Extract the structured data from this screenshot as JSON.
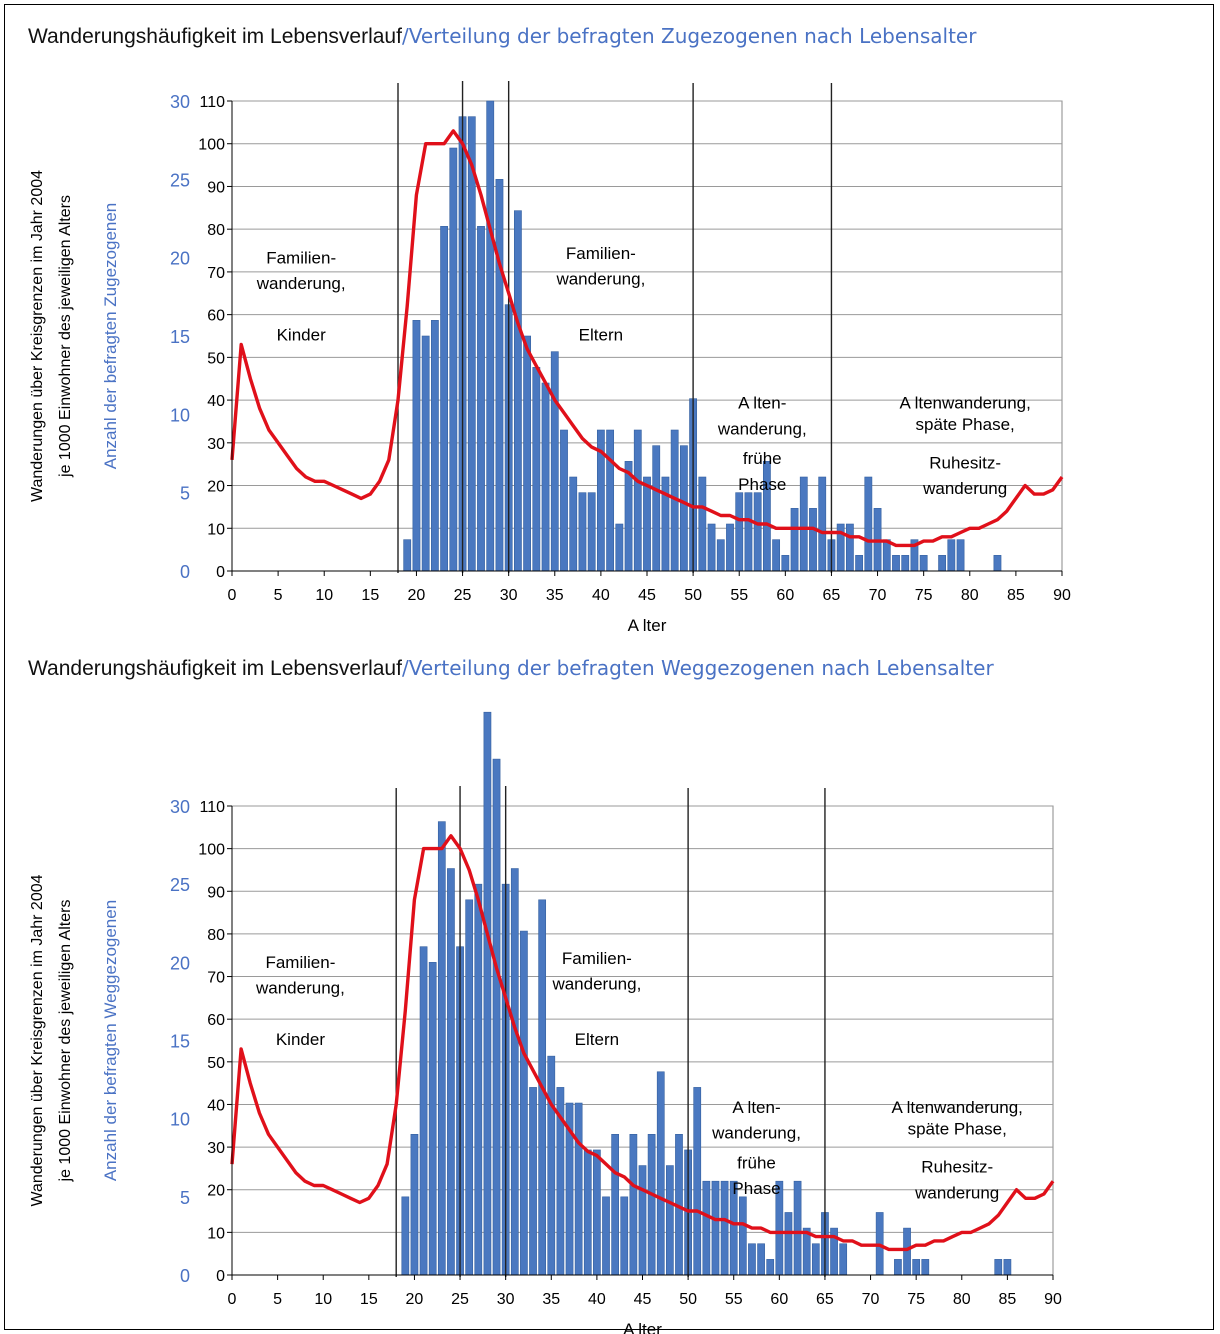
{
  "chart_data": [
    {
      "type": "bar",
      "title": "Wanderungshäufigkeit im Lebensverlauf",
      "subtitle": "/Verteilung der befragten Zugezogenen nach Lebensalter",
      "xlabel": "A lter",
      "ylabel_left": "Wanderungen über Kreisgrenzen im Jahr 2004",
      "ylabel_left2": "je 1000 Einwohner des jeweiligen Alters",
      "ylabel_blue": "Anzahl der befragten Zugezogenen",
      "xlim": [
        0,
        90
      ],
      "ylim_left": [
        0,
        110
      ],
      "ylim_blue": [
        0,
        30
      ],
      "grid": true,
      "x_ticks": [
        0,
        5,
        10,
        15,
        20,
        25,
        30,
        35,
        40,
        45,
        50,
        55,
        60,
        65,
        70,
        75,
        80,
        85,
        90
      ],
      "y_ticks_left": [
        0,
        10,
        20,
        30,
        40,
        50,
        60,
        70,
        80,
        90,
        100,
        110
      ],
      "y_ticks_blue": [
        0,
        5,
        10,
        15,
        20,
        25,
        30
      ],
      "vertical_lines": [
        18,
        25,
        30,
        50,
        65
      ],
      "annotations": [
        {
          "text": "Familien-",
          "x": 12,
          "y": 72
        },
        {
          "text": "wanderung,",
          "x": 12,
          "y": 66
        },
        {
          "text": "Kinder",
          "x": 12,
          "y": 54
        },
        {
          "text": "Familien-",
          "x": 54,
          "y": 73
        },
        {
          "text": "wanderung,",
          "x": 54,
          "y": 67
        },
        {
          "text": "Eltern",
          "x": 54,
          "y": 54
        },
        {
          "text": "A lten-",
          "x": 80,
          "y": 38
        },
        {
          "text": "wanderung,",
          "x": 80,
          "y": 32
        },
        {
          "text": "frühe",
          "x": 80,
          "y": 25
        },
        {
          "text": "Phase",
          "x": 80,
          "y": 19
        },
        {
          "text": "A ltenwanderung,",
          "x": 118,
          "y": 38
        },
        {
          "text": "späte Phase,",
          "x": 118,
          "y": 33
        },
        {
          "text": "Ruhesitz-",
          "x": 118,
          "y": 24
        },
        {
          "text": "wanderung",
          "x": 118,
          "y": 18
        }
      ],
      "bars": {
        "name": "Anzahl der befragten Zugezogenen",
        "x": [
          19,
          20,
          21,
          22,
          23,
          24,
          25,
          26,
          27,
          28,
          29,
          30,
          31,
          32,
          33,
          34,
          35,
          36,
          37,
          38,
          39,
          40,
          41,
          42,
          43,
          44,
          45,
          46,
          47,
          48,
          49,
          50,
          51,
          52,
          53,
          54,
          55,
          56,
          57,
          58,
          59,
          60,
          61,
          62,
          63,
          64,
          65,
          66,
          67,
          68,
          69,
          70,
          71,
          72,
          73,
          74,
          75,
          76,
          77,
          78,
          79,
          80,
          81,
          82,
          83
        ],
        "values": [
          2,
          16,
          15,
          16,
          22,
          27,
          29,
          29,
          22,
          30,
          25,
          17,
          23,
          15,
          13,
          12,
          14,
          9,
          6,
          5,
          5,
          9,
          9,
          3,
          7,
          9,
          6,
          8,
          6,
          9,
          8,
          11,
          6,
          3,
          2,
          3,
          5,
          5,
          5,
          7,
          2,
          1,
          4,
          6,
          4,
          6,
          2,
          3,
          3,
          1,
          6,
          4,
          2,
          1,
          1,
          2,
          1,
          0,
          1,
          2,
          2,
          0,
          0,
          0,
          1
        ]
      },
      "line": {
        "name": "Wanderungen je 1000 Einwohner",
        "x": [
          0,
          1,
          2,
          3,
          4,
          5,
          6,
          7,
          8,
          9,
          10,
          11,
          12,
          13,
          14,
          15,
          16,
          17,
          18,
          19,
          20,
          21,
          22,
          23,
          24,
          25,
          26,
          27,
          28,
          29,
          30,
          31,
          32,
          33,
          34,
          35,
          36,
          37,
          38,
          39,
          40,
          41,
          42,
          43,
          44,
          45,
          46,
          47,
          48,
          49,
          50,
          51,
          52,
          53,
          54,
          55,
          56,
          57,
          58,
          59,
          60,
          61,
          62,
          63,
          64,
          65,
          66,
          67,
          68,
          69,
          70,
          71,
          72,
          73,
          74,
          75,
          76,
          77,
          78,
          79,
          80,
          81,
          82,
          83,
          84,
          85,
          86,
          87,
          88,
          89,
          90
        ],
        "values": [
          26,
          53,
          45,
          38,
          33,
          30,
          27,
          24,
          22,
          21,
          21,
          20,
          19,
          18,
          17,
          18,
          21,
          26,
          40,
          62,
          88,
          100,
          100,
          100,
          103,
          100,
          95,
          88,
          80,
          72,
          65,
          58,
          52,
          48,
          44,
          40,
          37,
          34,
          31,
          29,
          28,
          26,
          24,
          23,
          21,
          20,
          19,
          18,
          17,
          16,
          15,
          15,
          14,
          13,
          13,
          12,
          12,
          11,
          11,
          10,
          10,
          10,
          10,
          10,
          9,
          9,
          9,
          8,
          8,
          7,
          7,
          7,
          6,
          6,
          6,
          7,
          7,
          8,
          8,
          9,
          10,
          10,
          11,
          12,
          14,
          17,
          20,
          18,
          18,
          19,
          22
        ]
      }
    },
    {
      "type": "bar",
      "title": "Wanderungshäufigkeit im Lebensverlauf",
      "subtitle": "/Verteilung der befragten Weggezogenen nach Lebensalter",
      "xlabel": "A lter",
      "ylabel_left": "Wanderungen über Kreisgrenzen im Jahr 2004",
      "ylabel_left2": "je 1000 Einwohner des jeweiligen Alters",
      "ylabel_blue": "Anzahl der befragten Weggezogenen",
      "xlim": [
        0,
        90
      ],
      "ylim_left": [
        0,
        110
      ],
      "ylim_blue": [
        0,
        30
      ],
      "grid": true,
      "x_ticks": [
        0,
        5,
        10,
        15,
        20,
        25,
        30,
        35,
        40,
        45,
        50,
        55,
        60,
        65,
        70,
        75,
        80,
        85,
        90
      ],
      "y_ticks_left": [
        0,
        10,
        20,
        30,
        40,
        50,
        60,
        70,
        80,
        90,
        100,
        110
      ],
      "y_ticks_blue": [
        0,
        5,
        10,
        15,
        20,
        25,
        30
      ],
      "vertical_lines": [
        18,
        25,
        30,
        50,
        65
      ],
      "annotations": [
        {
          "text": "Familien-",
          "x": 12,
          "y": 72
        },
        {
          "text": "wanderung,",
          "x": 12,
          "y": 66
        },
        {
          "text": "Kinder",
          "x": 12,
          "y": 54
        },
        {
          "text": "Familien-",
          "x": 54,
          "y": 73
        },
        {
          "text": "wanderung,",
          "x": 54,
          "y": 67
        },
        {
          "text": "Eltern",
          "x": 54,
          "y": 54
        },
        {
          "text": "A lten-",
          "x": 80,
          "y": 38
        },
        {
          "text": "wanderung,",
          "x": 80,
          "y": 32
        },
        {
          "text": "frühe",
          "x": 80,
          "y": 25
        },
        {
          "text": "Phase",
          "x": 80,
          "y": 19
        },
        {
          "text": "A ltenwanderung,",
          "x": 118,
          "y": 38
        },
        {
          "text": "späte Phase,",
          "x": 118,
          "y": 33
        },
        {
          "text": "Ruhesitz-",
          "x": 118,
          "y": 24
        },
        {
          "text": "wanderung",
          "x": 118,
          "y": 18
        }
      ],
      "bars": {
        "name": "Anzahl der befragten Weggezogenen",
        "x": [
          19,
          20,
          21,
          22,
          23,
          24,
          25,
          26,
          27,
          28,
          29,
          30,
          31,
          32,
          33,
          34,
          35,
          36,
          37,
          38,
          39,
          40,
          41,
          42,
          43,
          44,
          45,
          46,
          47,
          48,
          49,
          50,
          51,
          52,
          53,
          54,
          55,
          56,
          57,
          58,
          59,
          60,
          61,
          62,
          63,
          64,
          65,
          66,
          67,
          68,
          69,
          70,
          71,
          72,
          73,
          74,
          75,
          76,
          77,
          78,
          79,
          80,
          81,
          82,
          83,
          84,
          85
        ],
        "values": [
          5,
          9,
          21,
          20,
          29,
          26,
          21,
          24,
          25,
          36,
          33,
          25,
          26,
          22,
          12,
          24,
          14,
          12,
          11,
          11,
          8,
          8,
          5,
          9,
          5,
          9,
          7,
          9,
          13,
          7,
          9,
          8,
          12,
          6,
          6,
          6,
          6,
          5,
          2,
          2,
          1,
          6,
          4,
          6,
          3,
          2,
          4,
          3,
          2,
          0,
          0,
          0,
          4,
          0,
          1,
          3,
          1,
          1,
          0,
          0,
          0,
          0,
          0,
          0,
          0,
          1,
          1
        ]
      },
      "line": {
        "name": "Wanderungen je 1000 Einwohner",
        "x": [
          0,
          1,
          2,
          3,
          4,
          5,
          6,
          7,
          8,
          9,
          10,
          11,
          12,
          13,
          14,
          15,
          16,
          17,
          18,
          19,
          20,
          21,
          22,
          23,
          24,
          25,
          26,
          27,
          28,
          29,
          30,
          31,
          32,
          33,
          34,
          35,
          36,
          37,
          38,
          39,
          40,
          41,
          42,
          43,
          44,
          45,
          46,
          47,
          48,
          49,
          50,
          51,
          52,
          53,
          54,
          55,
          56,
          57,
          58,
          59,
          60,
          61,
          62,
          63,
          64,
          65,
          66,
          67,
          68,
          69,
          70,
          71,
          72,
          73,
          74,
          75,
          76,
          77,
          78,
          79,
          80,
          81,
          82,
          83,
          84,
          85,
          86,
          87,
          88,
          89,
          90
        ],
        "values": [
          26,
          53,
          45,
          38,
          33,
          30,
          27,
          24,
          22,
          21,
          21,
          20,
          19,
          18,
          17,
          18,
          21,
          26,
          40,
          62,
          88,
          100,
          100,
          100,
          103,
          100,
          95,
          88,
          80,
          72,
          65,
          58,
          52,
          48,
          44,
          40,
          37,
          34,
          31,
          29,
          28,
          26,
          24,
          23,
          21,
          20,
          19,
          18,
          17,
          16,
          15,
          15,
          14,
          13,
          13,
          12,
          12,
          11,
          11,
          10,
          10,
          10,
          10,
          10,
          9,
          9,
          9,
          8,
          8,
          7,
          7,
          7,
          6,
          6,
          6,
          7,
          7,
          8,
          8,
          9,
          10,
          10,
          11,
          12,
          14,
          17,
          20,
          18,
          18,
          19,
          22
        ]
      }
    }
  ],
  "colors": {
    "bar": "#4a78c0",
    "bar_edge": "#35609f",
    "line": "#e0101a",
    "grid": "#9a9a9a",
    "blue_axis": "#4a72c4"
  }
}
